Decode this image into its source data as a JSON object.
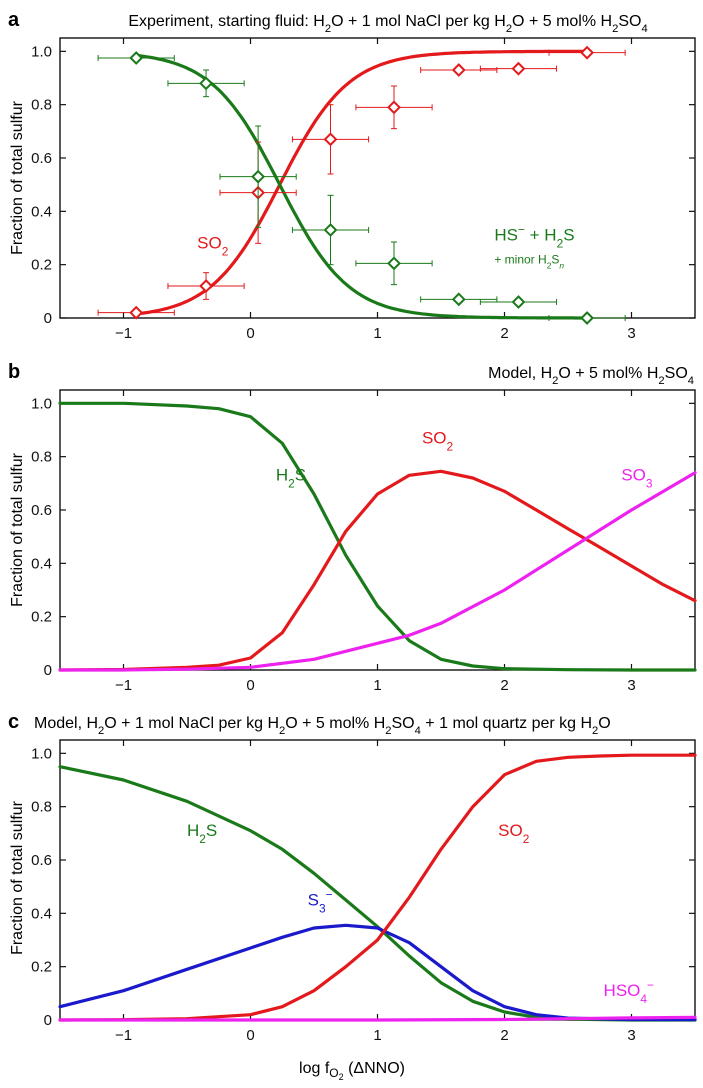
{
  "x_axis_label": "log f",
  "x_axis_label_sub": "O",
  "x_axis_label_subsub": "2",
  "x_axis_label_tail": " (ΔNNO)",
  "colors": {
    "red": "#e3191c",
    "green": "#1a7a1a",
    "magenta": "#ee22ee",
    "blue": "#1a1acc",
    "axis": "#111111"
  },
  "chart_data": [
    {
      "panel": "a",
      "type": "scatter+line",
      "title": [
        {
          "t": "Experiment, starting fluid: H"
        },
        {
          "t": "2",
          "sub": true
        },
        {
          "t": "O + 1 mol NaCl per kg H"
        },
        {
          "t": "2",
          "sub": true
        },
        {
          "t": "O + 5 mol% H"
        },
        {
          "t": "2",
          "sub": true
        },
        {
          "t": "SO"
        },
        {
          "t": "4",
          "sub": true
        }
      ],
      "xlabel": "",
      "ylabel": "Fraction of total sulfur",
      "xlim": [
        -1.5,
        3.5
      ],
      "ylim": [
        0,
        1.05
      ],
      "xticks": [
        -1,
        0,
        1,
        2,
        3
      ],
      "xtick_labels": [
        "−1",
        "0",
        "1",
        "2",
        "3"
      ],
      "yticks": [
        0,
        0.2,
        0.4,
        0.6,
        0.8,
        1.0
      ],
      "ytick_labels": [
        "0",
        "0.2",
        "0.4",
        "0.6",
        "0.8",
        "1.0"
      ],
      "series": [
        {
          "name": "SO2",
          "color": "red",
          "curve": {
            "kind": "sigmoid",
            "x0": 0.23,
            "k": 3.7,
            "rising": true,
            "ymax": 1.0
          },
          "points": [
            {
              "x": -0.9,
              "y": 0.02,
              "xerr": 0.3,
              "yerr": 0.01
            },
            {
              "x": -0.35,
              "y": 0.12,
              "xerr": 0.3,
              "yerr": 0.05
            },
            {
              "x": 0.06,
              "y": 0.47,
              "xerr": 0.3,
              "yerr": 0.19
            },
            {
              "x": 0.63,
              "y": 0.67,
              "xerr": 0.3,
              "yerr": 0.13
            },
            {
              "x": 1.13,
              "y": 0.79,
              "xerr": 0.3,
              "yerr": 0.08
            },
            {
              "x": 1.64,
              "y": 0.93,
              "xerr": 0.3,
              "yerr": 0.01
            },
            {
              "x": 2.11,
              "y": 0.935,
              "xerr": 0.3,
              "yerr": 0.01
            },
            {
              "x": 2.65,
              "y": 0.995,
              "xerr": 0.3,
              "yerr": 0.01
            }
          ]
        },
        {
          "name": "HS- + H2S",
          "color": "green",
          "curve": {
            "kind": "sigmoid",
            "x0": 0.23,
            "k": 3.7,
            "rising": false,
            "ymax": 1.0
          },
          "points": [
            {
              "x": -0.9,
              "y": 0.975,
              "xerr": 0.3,
              "yerr": 0.01
            },
            {
              "x": -0.35,
              "y": 0.88,
              "xerr": 0.3,
              "yerr": 0.05
            },
            {
              "x": 0.06,
              "y": 0.53,
              "xerr": 0.3,
              "yerr": 0.19
            },
            {
              "x": 0.63,
              "y": 0.33,
              "xerr": 0.3,
              "yerr": 0.13
            },
            {
              "x": 1.13,
              "y": 0.205,
              "xerr": 0.3,
              "yerr": 0.08
            },
            {
              "x": 1.64,
              "y": 0.07,
              "xerr": 0.3,
              "yerr": 0.01
            },
            {
              "x": 2.11,
              "y": 0.06,
              "xerr": 0.3,
              "yerr": 0.01
            },
            {
              "x": 2.65,
              "y": 0.0,
              "xerr": 0.3,
              "yerr": 0.01
            }
          ]
        }
      ],
      "labels": [
        {
          "parts": [
            {
              "t": "SO"
            },
            {
              "t": "2",
              "sub": true
            }
          ],
          "x": -0.42,
          "y": 0.26,
          "color": "red",
          "size": 17
        },
        {
          "parts": [
            {
              "t": "HS"
            },
            {
              "t": "−",
              "sup": true
            },
            {
              "t": " + H"
            },
            {
              "t": "2",
              "sub": true
            },
            {
              "t": "S"
            }
          ],
          "x": 1.92,
          "y": 0.29,
          "color": "green",
          "size": 17
        },
        {
          "parts": [
            {
              "t": "+ minor H"
            },
            {
              "t": "2",
              "sub": true
            },
            {
              "t": "S"
            },
            {
              "t": "n",
              "sub": true,
              "italic": true
            }
          ],
          "x": 1.92,
          "y": 0.205,
          "color": "green",
          "size": 12
        }
      ]
    },
    {
      "panel": "b",
      "type": "line",
      "title": [
        {
          "t": "Model, H"
        },
        {
          "t": "2",
          "sub": true
        },
        {
          "t": "O + 5 mol% H"
        },
        {
          "t": "2",
          "sub": true
        },
        {
          "t": "SO"
        },
        {
          "t": "4",
          "sub": true
        }
      ],
      "xlabel": "",
      "ylabel": "Fraction of total sulfur",
      "xlim": [
        -1.5,
        3.5
      ],
      "ylim": [
        0,
        1.05
      ],
      "xticks": [
        -1,
        0,
        1,
        2,
        3
      ],
      "xtick_labels": [
        "−1",
        "0",
        "1",
        "2",
        "3"
      ],
      "yticks": [
        0,
        0.2,
        0.4,
        0.6,
        0.8,
        1.0
      ],
      "ytick_labels": [
        "0",
        "0.2",
        "0.4",
        "0.6",
        "0.8",
        "1.0"
      ],
      "series": [
        {
          "name": "H2S",
          "color": "green",
          "x": [
            -1.5,
            -1,
            -0.5,
            -0.25,
            0,
            0.25,
            0.5,
            0.75,
            1,
            1.25,
            1.5,
            1.75,
            2,
            2.5,
            3,
            3.5
          ],
          "y": [
            1.0,
            1.0,
            0.99,
            0.98,
            0.95,
            0.85,
            0.66,
            0.43,
            0.24,
            0.11,
            0.04,
            0.015,
            0.005,
            0.001,
            0,
            0
          ]
        },
        {
          "name": "SO2",
          "color": "red",
          "x": [
            -1.5,
            -1,
            -0.5,
            -0.25,
            0,
            0.25,
            0.5,
            0.75,
            1,
            1.25,
            1.5,
            1.75,
            2,
            2.25,
            2.5,
            2.75,
            3,
            3.25,
            3.5
          ],
          "y": [
            0,
            0.002,
            0.01,
            0.018,
            0.045,
            0.14,
            0.32,
            0.52,
            0.66,
            0.73,
            0.745,
            0.72,
            0.67,
            0.6,
            0.53,
            0.46,
            0.39,
            0.32,
            0.26
          ]
        },
        {
          "name": "SO3",
          "color": "magenta",
          "x": [
            -1.5,
            -1,
            -0.5,
            0,
            0.5,
            1,
            1.25,
            1.5,
            2,
            2.5,
            3,
            3.5
          ],
          "y": [
            0,
            0,
            0.003,
            0.01,
            0.04,
            0.1,
            0.13,
            0.175,
            0.3,
            0.45,
            0.6,
            0.74
          ]
        }
      ],
      "labels": [
        {
          "parts": [
            {
              "t": "H"
            },
            {
              "t": "2",
              "sub": true
            },
            {
              "t": "S"
            }
          ],
          "x": 0.2,
          "y": 0.71,
          "color": "green",
          "size": 17
        },
        {
          "parts": [
            {
              "t": "SO"
            },
            {
              "t": "2",
              "sub": true
            }
          ],
          "x": 1.35,
          "y": 0.85,
          "color": "red",
          "size": 17
        },
        {
          "parts": [
            {
              "t": "SO"
            },
            {
              "t": "3",
              "sub": true
            }
          ],
          "x": 2.92,
          "y": 0.71,
          "color": "magenta",
          "size": 17
        }
      ]
    },
    {
      "panel": "c",
      "type": "line",
      "title": [
        {
          "t": "Model, H"
        },
        {
          "t": "2",
          "sub": true
        },
        {
          "t": "O + 1 mol NaCl per kg H"
        },
        {
          "t": "2",
          "sub": true
        },
        {
          "t": "O + 5 mol% H"
        },
        {
          "t": "2",
          "sub": true
        },
        {
          "t": "SO"
        },
        {
          "t": "4",
          "sub": true
        },
        {
          "t": " + 1 mol quartz per kg H"
        },
        {
          "t": "2",
          "sub": true
        },
        {
          "t": "O"
        }
      ],
      "xlabel": "log fO2 (ΔNNO)",
      "ylabel": "Fraction of total sulfur",
      "xlim": [
        -1.5,
        3.5
      ],
      "ylim": [
        0,
        1.05
      ],
      "xticks": [
        -1,
        0,
        1,
        2,
        3
      ],
      "xtick_labels": [
        "−1",
        "0",
        "1",
        "2",
        "3"
      ],
      "yticks": [
        0,
        0.2,
        0.4,
        0.6,
        0.8,
        1.0
      ],
      "ytick_labels": [
        "0",
        "0.2",
        "0.4",
        "0.6",
        "0.8",
        "1.0"
      ],
      "series": [
        {
          "name": "H2S",
          "color": "green",
          "x": [
            -1.5,
            -1,
            -0.5,
            0,
            0.25,
            0.5,
            0.75,
            1,
            1.25,
            1.5,
            1.75,
            2,
            2.25,
            2.5,
            3,
            3.5
          ],
          "y": [
            0.95,
            0.9,
            0.82,
            0.71,
            0.64,
            0.55,
            0.45,
            0.35,
            0.24,
            0.14,
            0.07,
            0.03,
            0.01,
            0.003,
            0,
            0
          ]
        },
        {
          "name": "S3-",
          "color": "blue",
          "x": [
            -1.5,
            -1,
            -0.5,
            0,
            0.25,
            0.5,
            0.75,
            1,
            1.25,
            1.5,
            1.75,
            2,
            2.25,
            2.5,
            3,
            3.5
          ],
          "y": [
            0.05,
            0.11,
            0.19,
            0.27,
            0.31,
            0.345,
            0.355,
            0.345,
            0.29,
            0.2,
            0.11,
            0.05,
            0.02,
            0.007,
            0.002,
            0.001
          ]
        },
        {
          "name": "SO2",
          "color": "red",
          "x": [
            -1.5,
            -1,
            -0.5,
            0,
            0.25,
            0.5,
            0.75,
            1,
            1.25,
            1.5,
            1.75,
            2,
            2.25,
            2.5,
            2.75,
            3,
            3.5
          ],
          "y": [
            0,
            0.001,
            0.005,
            0.02,
            0.05,
            0.11,
            0.2,
            0.3,
            0.46,
            0.64,
            0.8,
            0.92,
            0.97,
            0.985,
            0.99,
            0.993,
            0.993
          ]
        },
        {
          "name": "HSO4-",
          "color": "magenta",
          "x": [
            -1.5,
            0,
            1,
            2,
            2.5,
            3,
            3.5
          ],
          "y": [
            0,
            0,
            0,
            0.002,
            0.005,
            0.008,
            0.01
          ]
        }
      ],
      "labels": [
        {
          "parts": [
            {
              "t": "H"
            },
            {
              "t": "2",
              "sub": true
            },
            {
              "t": "S"
            }
          ],
          "x": -0.5,
          "y": 0.69,
          "color": "green",
          "size": 17
        },
        {
          "parts": [
            {
              "t": "S"
            },
            {
              "t": "3",
              "sub": true
            },
            {
              "t": "−",
              "sup": true
            }
          ],
          "x": 0.45,
          "y": 0.43,
          "color": "blue",
          "size": 17
        },
        {
          "parts": [
            {
              "t": "SO"
            },
            {
              "t": "2",
              "sub": true
            }
          ],
          "x": 1.95,
          "y": 0.69,
          "color": "red",
          "size": 17
        },
        {
          "parts": [
            {
              "t": "HSO"
            },
            {
              "t": "4",
              "sub": true
            },
            {
              "t": "−",
              "sup": true
            }
          ],
          "x": 2.78,
          "y": 0.09,
          "color": "magenta",
          "size": 17
        }
      ]
    }
  ]
}
